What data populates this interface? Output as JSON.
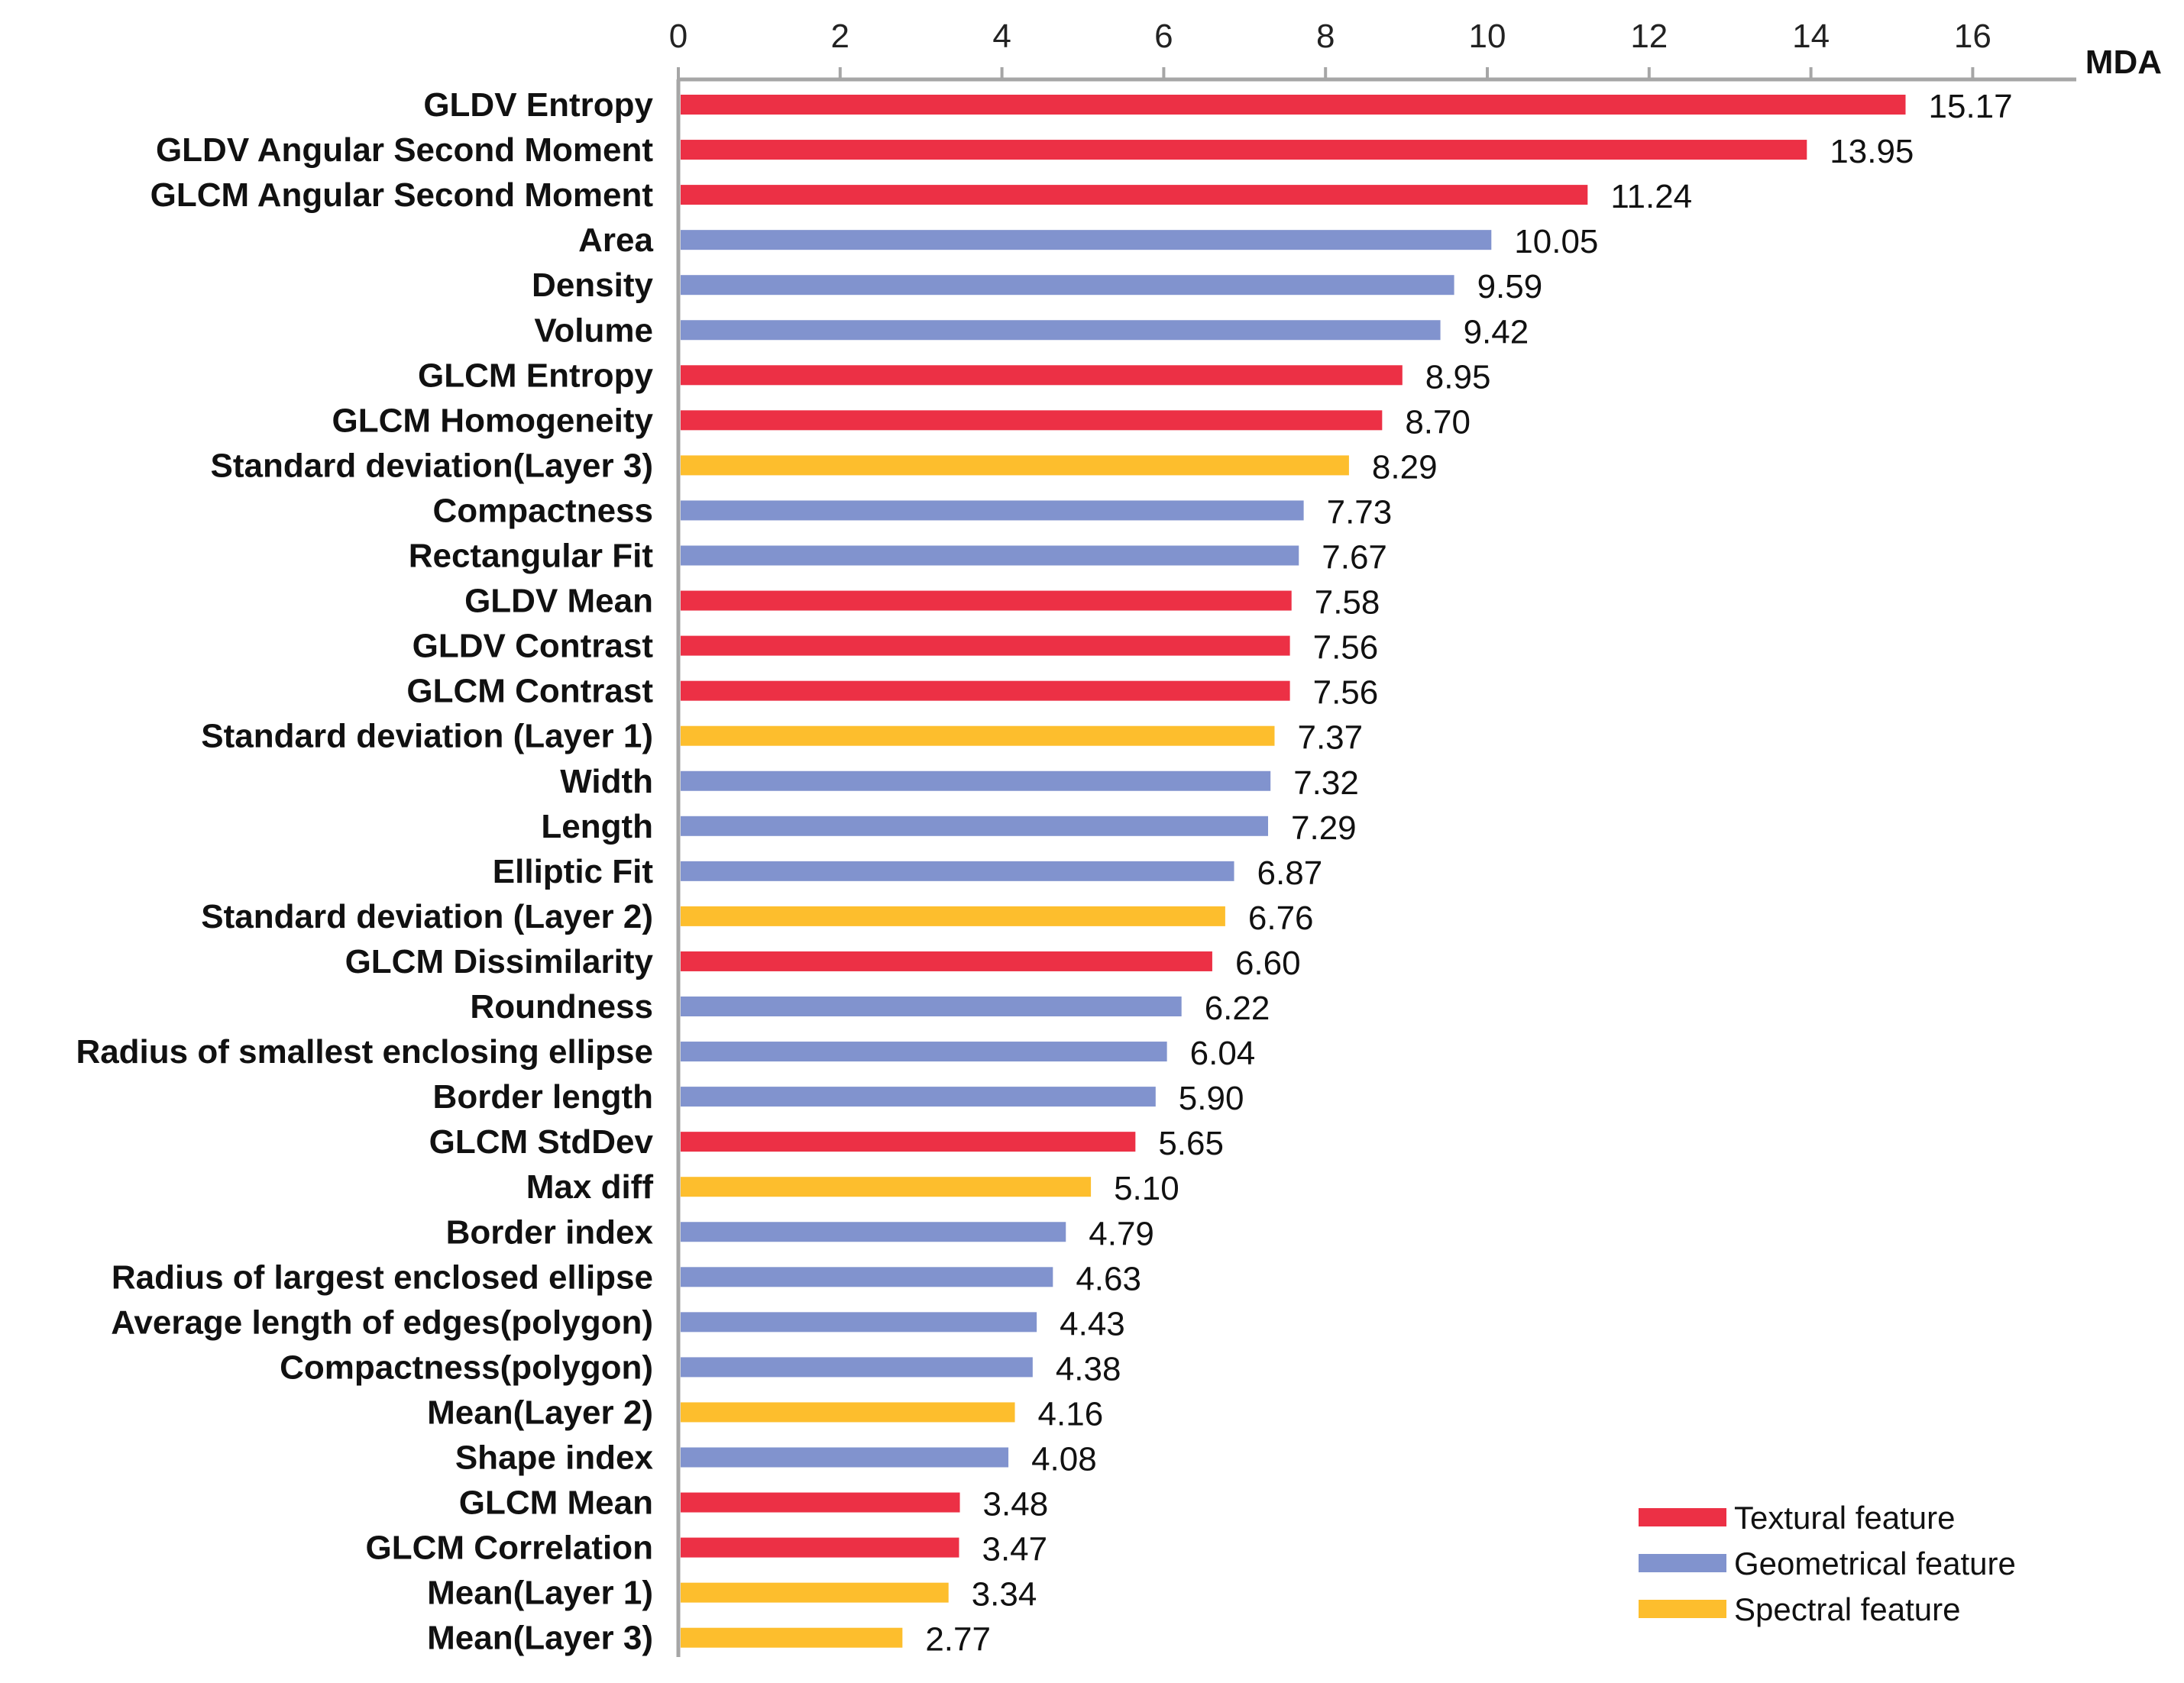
{
  "chart_data": {
    "type": "bar",
    "orientation": "horizontal",
    "xlabel": "MDA",
    "xlim": [
      0,
      17.3
    ],
    "xticks": [
      0,
      2,
      4,
      6,
      8,
      10,
      12,
      14,
      16
    ],
    "legend_position": "bottom-right",
    "colors": {
      "Textural feature": "#EC3045",
      "Geometrical feature": "#8193CE",
      "Spectral feature": "#FDBE2D"
    },
    "legend": [
      "Textural feature",
      "Geometrical feature",
      "Spectral feature"
    ],
    "bars": [
      {
        "label": "GLDV Entropy",
        "value": 15.17,
        "value_text": "15.17",
        "group": "Textural feature"
      },
      {
        "label": "GLDV Angular Second Moment",
        "value": 13.95,
        "value_text": "13.95",
        "group": "Textural feature"
      },
      {
        "label": "GLCM Angular Second Moment",
        "value": 11.24,
        "value_text": "11.24",
        "group": "Textural feature"
      },
      {
        "label": "Area",
        "value": 10.05,
        "value_text": "10.05",
        "group": "Geometrical feature"
      },
      {
        "label": "Density",
        "value": 9.59,
        "value_text": "9.59",
        "group": "Geometrical feature"
      },
      {
        "label": "Volume",
        "value": 9.42,
        "value_text": "9.42",
        "group": "Geometrical feature"
      },
      {
        "label": "GLCM Entropy",
        "value": 8.95,
        "value_text": "8.95",
        "group": "Textural feature"
      },
      {
        "label": "GLCM Homogeneity",
        "value": 8.7,
        "value_text": "8.70",
        "group": "Textural feature"
      },
      {
        "label": "Standard deviation(Layer 3)",
        "value": 8.29,
        "value_text": "8.29",
        "group": "Spectral feature"
      },
      {
        "label": "Compactness",
        "value": 7.73,
        "value_text": "7.73",
        "group": "Geometrical feature"
      },
      {
        "label": "Rectangular Fit",
        "value": 7.67,
        "value_text": "7.67",
        "group": "Geometrical feature"
      },
      {
        "label": "GLDV Mean",
        "value": 7.58,
        "value_text": "7.58",
        "group": "Textural feature"
      },
      {
        "label": "GLDV Contrast",
        "value": 7.56,
        "value_text": "7.56",
        "group": "Textural feature"
      },
      {
        "label": "GLCM Contrast",
        "value": 7.56,
        "value_text": "7.56",
        "group": "Textural feature"
      },
      {
        "label": "Standard deviation (Layer 1)",
        "value": 7.37,
        "value_text": "7.37",
        "group": "Spectral feature"
      },
      {
        "label": "Width",
        "value": 7.32,
        "value_text": "7.32",
        "group": "Geometrical feature"
      },
      {
        "label": "Length",
        "value": 7.29,
        "value_text": "7.29",
        "group": "Geometrical feature"
      },
      {
        "label": "Elliptic Fit",
        "value": 6.87,
        "value_text": "6.87",
        "group": "Geometrical feature"
      },
      {
        "label": "Standard deviation (Layer 2)",
        "value": 6.76,
        "value_text": "6.76",
        "group": "Spectral feature"
      },
      {
        "label": "GLCM Dissimilarity",
        "value": 6.6,
        "value_text": "6.60",
        "group": "Textural feature"
      },
      {
        "label": "Roundness",
        "value": 6.22,
        "value_text": "6.22",
        "group": "Geometrical feature"
      },
      {
        "label": "Radius of smallest enclosing ellipse",
        "value": 6.04,
        "value_text": "6.04",
        "group": "Geometrical feature"
      },
      {
        "label": "Border length",
        "value": 5.9,
        "value_text": "5.90",
        "group": "Geometrical feature"
      },
      {
        "label": "GLCM StdDev",
        "value": 5.65,
        "value_text": "5.65",
        "group": "Textural feature"
      },
      {
        "label": "Max  diff",
        "value": 5.1,
        "value_text": "5.10",
        "group": "Spectral feature"
      },
      {
        "label": "Border index",
        "value": 4.79,
        "value_text": "4.79",
        "group": "Geometrical feature"
      },
      {
        "label": "Radius of largest enclosed ellipse",
        "value": 4.63,
        "value_text": "4.63",
        "group": "Geometrical feature"
      },
      {
        "label": "Average length of edges(polygon)",
        "value": 4.43,
        "value_text": "4.43",
        "group": "Geometrical feature"
      },
      {
        "label": "Compactness(polygon)",
        "value": 4.38,
        "value_text": "4.38",
        "group": "Geometrical feature"
      },
      {
        "label": "Mean(Layer 2)",
        "value": 4.16,
        "value_text": "4.16",
        "group": "Spectral feature"
      },
      {
        "label": "Shape index",
        "value": 4.08,
        "value_text": "4.08",
        "group": "Geometrical feature"
      },
      {
        "label": "GLCM Mean",
        "value": 3.48,
        "value_text": "3.48",
        "group": "Textural feature"
      },
      {
        "label": "GLCM Correlation",
        "value": 3.47,
        "value_text": "3.47",
        "group": "Textural feature"
      },
      {
        "label": "Mean(Layer 1)",
        "value": 3.34,
        "value_text": "3.34",
        "group": "Spectral feature"
      },
      {
        "label": "Mean(Layer 3)",
        "value": 2.77,
        "value_text": "2.77",
        "group": "Spectral feature"
      }
    ]
  }
}
